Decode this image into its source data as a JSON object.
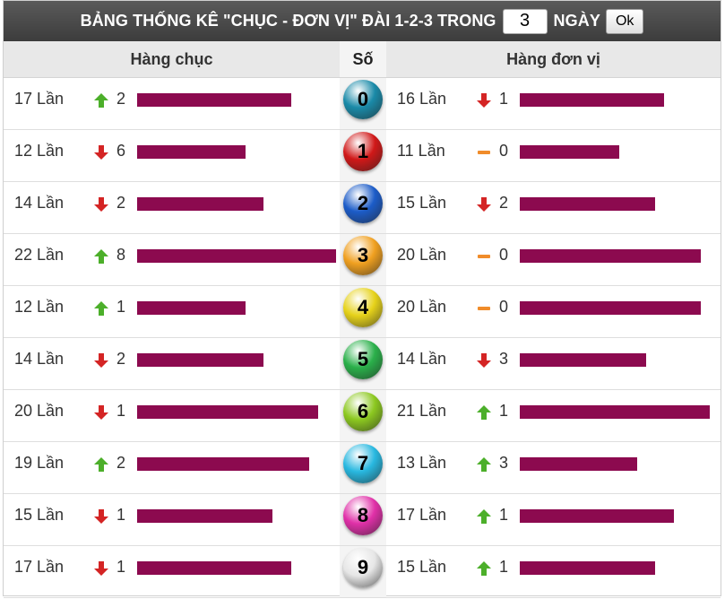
{
  "header": {
    "title_prefix": "BẢNG THỐNG KÊ \"CHỤC - ĐƠN VỊ\" ĐÀI 1-2-3 TRONG",
    "days_value": "3",
    "title_suffix": "NGÀY",
    "ok_label": "Ok"
  },
  "columns": {
    "chuc": "Hàng chục",
    "so": "Số",
    "dv": "Hàng đơn vị"
  },
  "colors": {
    "bar": "#8c0a4f",
    "up": "#4caf2a",
    "down": "#d42424",
    "flat": "#f08c2a"
  },
  "rows": [
    {
      "digit": "0",
      "ball_color": "#1a8aa8",
      "chuc": {
        "count": 17,
        "count_text": "17 Lần",
        "trend": "up",
        "delta": "2"
      },
      "dv": {
        "count": 16,
        "count_text": "16 Lần",
        "trend": "down",
        "delta": "1"
      }
    },
    {
      "digit": "1",
      "ball_color": "#d01818",
      "chuc": {
        "count": 12,
        "count_text": "12 Lần",
        "trend": "down",
        "delta": "6"
      },
      "dv": {
        "count": 11,
        "count_text": "11 Lần",
        "trend": "flat",
        "delta": "0"
      }
    },
    {
      "digit": "2",
      "ball_color": "#1c5cc8",
      "chuc": {
        "count": 14,
        "count_text": "14 Lần",
        "trend": "down",
        "delta": "2"
      },
      "dv": {
        "count": 15,
        "count_text": "15 Lần",
        "trend": "down",
        "delta": "2"
      }
    },
    {
      "digit": "3",
      "ball_color": "#f0a020",
      "chuc": {
        "count": 22,
        "count_text": "22 Lần",
        "trend": "up",
        "delta": "8"
      },
      "dv": {
        "count": 20,
        "count_text": "20 Lần",
        "trend": "flat",
        "delta": "0"
      }
    },
    {
      "digit": "4",
      "ball_color": "#e6d21a",
      "chuc": {
        "count": 12,
        "count_text": "12 Lần",
        "trend": "up",
        "delta": "1"
      },
      "dv": {
        "count": 20,
        "count_text": "20 Lần",
        "trend": "flat",
        "delta": "0"
      }
    },
    {
      "digit": "5",
      "ball_color": "#2ab04a",
      "chuc": {
        "count": 14,
        "count_text": "14 Lần",
        "trend": "down",
        "delta": "2"
      },
      "dv": {
        "count": 14,
        "count_text": "14 Lần",
        "trend": "down",
        "delta": "3"
      }
    },
    {
      "digit": "6",
      "ball_color": "#8cc820",
      "chuc": {
        "count": 20,
        "count_text": "20 Lần",
        "trend": "down",
        "delta": "1"
      },
      "dv": {
        "count": 21,
        "count_text": "21 Lần",
        "trend": "up",
        "delta": "1"
      }
    },
    {
      "digit": "7",
      "ball_color": "#28b8e0",
      "chuc": {
        "count": 19,
        "count_text": "19 Lần",
        "trend": "up",
        "delta": "2"
      },
      "dv": {
        "count": 13,
        "count_text": "13 Lần",
        "trend": "up",
        "delta": "3"
      }
    },
    {
      "digit": "8",
      "ball_color": "#e030a8",
      "chuc": {
        "count": 15,
        "count_text": "15 Lần",
        "trend": "down",
        "delta": "1"
      },
      "dv": {
        "count": 17,
        "count_text": "17 Lần",
        "trend": "up",
        "delta": "1"
      }
    },
    {
      "digit": "9",
      "ball_color": "#e6e6e6",
      "chuc": {
        "count": 17,
        "count_text": "17 Lần",
        "trend": "down",
        "delta": "1"
      },
      "dv": {
        "count": 15,
        "count_text": "15 Lần",
        "trend": "up",
        "delta": "1"
      }
    }
  ]
}
